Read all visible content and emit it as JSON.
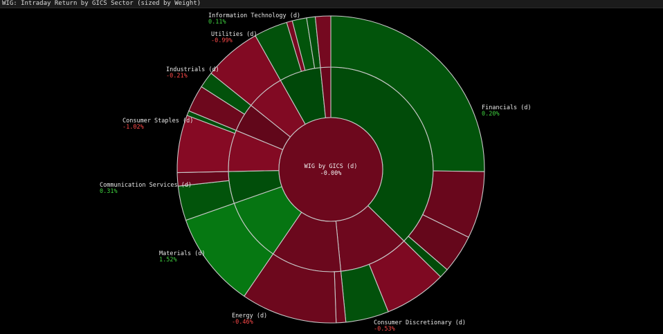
{
  "header": {
    "title": "WIG: Intraday Return by GICS Sector (sized by Weight)"
  },
  "colors": {
    "positive_label": "#3fd23f",
    "negative_label": "#ff4a4a",
    "background": "#000000"
  },
  "chart_data": {
    "type": "sunburst",
    "title": "WIG: Intraday Return by GICS Sector (sized by Weight)",
    "center": {
      "label": "WIG by GICS (d)",
      "value": "-0.00%",
      "return": 0.0
    },
    "sectors": [
      {
        "name": "Financials (d)",
        "value_text": "0.20%",
        "return": 0.2,
        "weight": 37.0,
        "children": [
          {
            "weight": 25.0,
            "return": 0.5
          },
          {
            "weight": 7.0,
            "return": -0.4
          },
          {
            "weight": 4.0,
            "return": -0.3
          },
          {
            "weight": 1.0,
            "return": 0.2
          }
        ]
      },
      {
        "name": "Consumer Discretionary (d)",
        "value_text": "-0.53%",
        "return": -0.53,
        "weight": 11.0,
        "children": [
          {
            "weight": 6.5,
            "return": -0.9
          },
          {
            "weight": 4.5,
            "return": 0.4
          }
        ]
      },
      {
        "name": "Energy (d)",
        "value_text": "-0.46%",
        "return": -0.46,
        "weight": 11.0,
        "children": [
          {
            "weight": 1.0,
            "return": -0.5
          },
          {
            "weight": 10.0,
            "return": -0.5
          }
        ]
      },
      {
        "name": "Materials (d)",
        "value_text": "1.52%",
        "return": 1.52,
        "weight": 10.0,
        "children": [
          {
            "weight": 10.0,
            "return": 1.6
          }
        ]
      },
      {
        "name": "Communication Services (d)",
        "value_text": "0.31%",
        "return": 0.31,
        "weight": 5.0,
        "children": [
          {
            "weight": 3.6,
            "return": 0.5
          },
          {
            "weight": 1.4,
            "return": -0.3
          }
        ]
      },
      {
        "name": "Consumer Staples (d)",
        "value_text": "-1.02%",
        "return": -1.02,
        "weight": 6.5,
        "children": [
          {
            "weight": 6.0,
            "return": -1.1
          },
          {
            "weight": 0.5,
            "return": 0.3
          }
        ]
      },
      {
        "name": "Industrials (d)",
        "value_text": "-0.21%",
        "return": -0.21,
        "weight": 4.5,
        "children": [
          {
            "weight": 2.8,
            "return": -0.5
          },
          {
            "weight": 1.7,
            "return": 0.4
          }
        ]
      },
      {
        "name": "Utilities (d)",
        "value_text": "-0.99%",
        "return": -0.99,
        "weight": 6.0,
        "children": [
          {
            "weight": 6.0,
            "return": -1.0
          }
        ]
      },
      {
        "name": "Information Technology (d)",
        "value_text": "0.11%",
        "return": 0.11,
        "weight": 6.5,
        "children": [
          {
            "weight": 3.5,
            "return": 0.4
          },
          {
            "weight": 0.6,
            "return": -0.8
          },
          {
            "weight": 1.5,
            "return": 0.5
          },
          {
            "weight": 0.9,
            "return": 0.3
          }
        ]
      },
      {
        "name": "",
        "value_text": "",
        "return": -0.4,
        "weight": 1.6,
        "children": [
          {
            "weight": 1.6,
            "return": -0.7
          }
        ]
      }
    ]
  }
}
